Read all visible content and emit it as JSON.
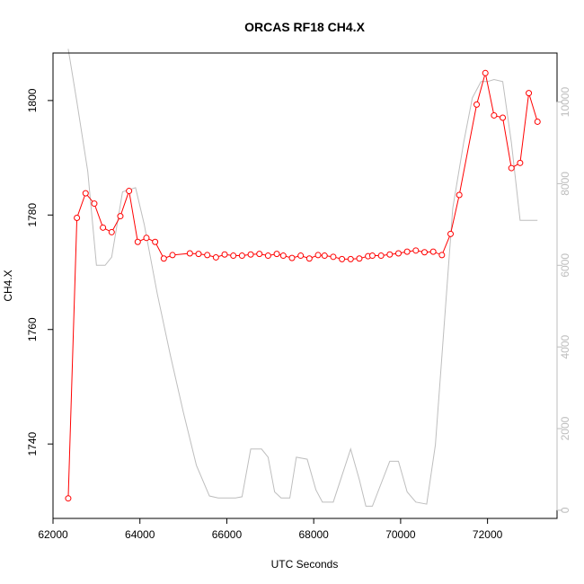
{
  "chart_data": {
    "type": "line",
    "title": "ORCAS RF18 CH4.X",
    "xlabel": "UTC Seconds",
    "ylabel": "CH4.X",
    "xlim": [
      62000,
      73600
    ],
    "ylim": [
      1727,
      1808.3
    ],
    "y2lim": [
      -200,
      11200
    ],
    "x_ticks": [
      62000,
      64000,
      66000,
      68000,
      70000,
      72000
    ],
    "y_ticks": [
      1740,
      1760,
      1780,
      1800
    ],
    "y2_ticks": [
      0,
      2000,
      4000,
      6000,
      8000,
      10000
    ],
    "x_tick_labels": [
      "62000",
      "64000",
      "66000",
      "68000",
      "70000",
      "72000"
    ],
    "y_tick_labels": [
      "1740",
      "1760",
      "1780",
      "1800"
    ],
    "y2_tick_labels": [
      "0",
      "2000",
      "4000",
      "6000",
      "8000",
      "10000"
    ],
    "grid": false,
    "colors": {
      "ch4": "#ff0000",
      "altitude": "#bebebe"
    },
    "series": [
      {
        "axis": "left",
        "style": "line+markers",
        "x": [
          62350,
          62550,
          62750,
          62950,
          63150,
          63350,
          63550,
          63750,
          63950,
          64150,
          64350,
          64550,
          64750,
          65150,
          65350,
          65550,
          65750,
          65950,
          66150,
          66350,
          66550,
          66750,
          66950,
          67150,
          67300,
          67500,
          67700,
          67900,
          68100,
          68250,
          68450,
          68650,
          68850,
          69050,
          69250,
          69350,
          69550,
          69750,
          69950,
          70150,
          70350,
          70550,
          70750,
          70950,
          71150,
          71350,
          71750,
          71950,
          72150,
          72350,
          72550,
          72750,
          72950,
          73150
        ],
        "y": [
          1730.5,
          1779.5,
          1783.8,
          1782.0,
          1777.8,
          1777.0,
          1779.8,
          1784.2,
          1775.3,
          1776.0,
          1775.3,
          1772.4,
          1773.0,
          1773.3,
          1773.2,
          1773.0,
          1772.6,
          1773.1,
          1772.9,
          1772.9,
          1773.1,
          1773.2,
          1772.9,
          1773.2,
          1772.9,
          1772.5,
          1772.9,
          1772.4,
          1773.0,
          1772.9,
          1772.7,
          1772.3,
          1772.3,
          1772.4,
          1772.8,
          1772.9,
          1772.9,
          1773.1,
          1773.3,
          1773.6,
          1773.8,
          1773.5,
          1773.6,
          1773.0,
          1776.7,
          1783.5,
          1799.3,
          1804.8,
          1797.4,
          1797.0,
          1788.2,
          1789.1,
          1801.3,
          1796.3
        ]
      },
      {
        "axis": "right",
        "style": "line",
        "x": [
          62350,
          62550,
          62800,
          63000,
          63200,
          63350,
          63600,
          63900,
          64100,
          64400,
          64700,
          65000,
          65300,
          65600,
          65800,
          66000,
          66200,
          66350,
          66550,
          66800,
          66950,
          67100,
          67250,
          67450,
          67600,
          67850,
          68050,
          68200,
          68450,
          68650,
          68850,
          69050,
          69200,
          69350,
          69550,
          69750,
          69950,
          70150,
          70350,
          70600,
          70800,
          71000,
          71200,
          71450,
          71650,
          71850,
          72000,
          72150,
          72350,
          72550,
          72750,
          72950,
          73150
        ],
        "y": [
          11300,
          10000,
          8300,
          6000,
          6000,
          6200,
          7800,
          7900,
          7000,
          5300,
          3800,
          2400,
          1100,
          350,
          300,
          300,
          300,
          330,
          1500,
          1500,
          1300,
          450,
          300,
          300,
          1300,
          1250,
          500,
          200,
          200,
          850,
          1500,
          750,
          100,
          100,
          650,
          1200,
          1200,
          450,
          200,
          150,
          1600,
          4500,
          7400,
          9000,
          10100,
          10500,
          10500,
          10550,
          10500,
          9000,
          7100,
          7100,
          7100
        ]
      }
    ]
  }
}
